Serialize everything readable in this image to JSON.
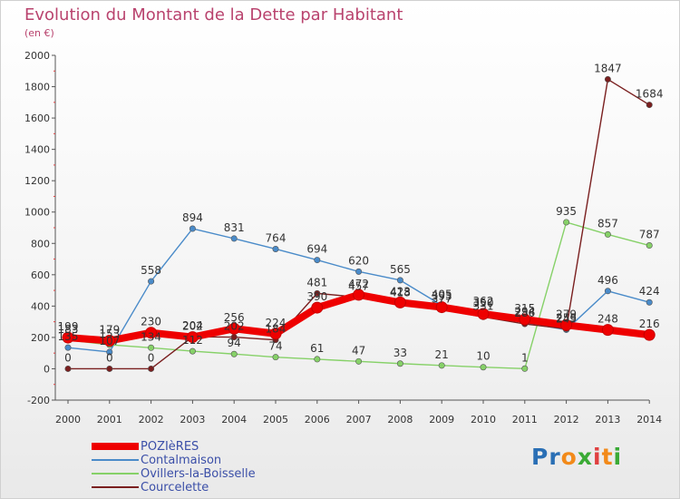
{
  "title": "Evolution du Montant de la Dette par Habitant",
  "subtitle": "(en €)",
  "logo": "Proxiti",
  "chart_data": {
    "type": "line",
    "title": "Evolution du Montant de la Dette par Habitant",
    "ylabel": "(en €)",
    "ylim": [
      -200,
      2000
    ],
    "yticks": [
      -200,
      0,
      200,
      400,
      600,
      800,
      1000,
      1200,
      1400,
      1600,
      1800,
      2000
    ],
    "categories": [
      "2000",
      "2001",
      "2002",
      "2003",
      "2004",
      "2005",
      "2006",
      "2007",
      "2008",
      "2009",
      "2010",
      "2011",
      "2012",
      "2013",
      "2014"
    ],
    "grid": false,
    "legend_position": "bottom-left",
    "series": [
      {
        "name": "Contalmaison",
        "color": "#4a8bc9",
        "values": [
          135,
          107,
          558,
          894,
          831,
          764,
          694,
          620,
          565,
          405,
          362,
          294,
          249,
          496,
          424
        ],
        "labels": [
          "135",
          "107",
          "558",
          "894",
          "831",
          "764",
          "694",
          "620",
          "565",
          "405",
          "362",
          "294",
          "249",
          "496",
          "424"
        ]
      },
      {
        "name": "Ovillers-la-Boisselle",
        "color": "#86d168",
        "values": [
          183,
          153,
          134,
          112,
          94,
          74,
          61,
          47,
          33,
          21,
          10,
          1,
          935,
          857,
          787
        ],
        "labels": [
          "183",
          "153",
          "134",
          "112",
          "94",
          "74",
          "61",
          "47",
          "33",
          "21",
          "10",
          "1",
          "935",
          "857",
          "787"
        ]
      },
      {
        "name": "Courcelette",
        "color": "#7a1f1f",
        "values": [
          0,
          0,
          0,
          204,
          202,
          184,
          481,
          457,
          418,
          377,
          331,
          286,
          255,
          1847,
          1684
        ],
        "labels": [
          "0",
          "0",
          "0",
          "204",
          "202",
          "184",
          "481",
          "457",
          "418",
          "377",
          "331",
          "286",
          "255",
          "1847",
          "1684"
        ]
      },
      {
        "name": "POZIèRES",
        "color": "#ee0000",
        "values": [
          199,
          179,
          230,
          202,
          256,
          224,
          390,
          472,
          423,
          393,
          350,
          315,
          279,
          248,
          216
        ],
        "labels": [
          "199",
          "179",
          "230",
          "202",
          "256",
          "224",
          "390",
          "472",
          "423",
          "393",
          "350",
          "315",
          "279",
          "248",
          "216"
        ]
      }
    ]
  }
}
